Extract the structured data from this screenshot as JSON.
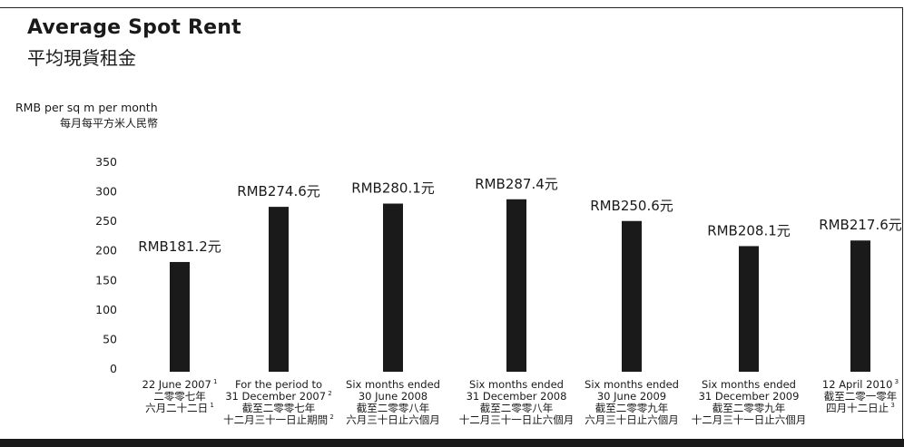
{
  "title": "Average Spot Rent",
  "title_zh": "平均現貨租金",
  "unit": "RMB per sq m per month",
  "unit_zh": "每月每平方米人民幣",
  "chart_data": {
    "type": "bar",
    "title": "Average Spot Rent",
    "ylabel": "RMB per sq m per month",
    "ylim": [
      0,
      350
    ],
    "yticks": [
      0,
      50,
      100,
      150,
      200,
      250,
      300,
      350
    ],
    "grid": false,
    "bar_color": "#1a1a1a",
    "categories": [
      "22 June 2007",
      "For the period to 31 December 2007",
      "Six months ended 30 June 2008",
      "Six months ended 31 December 2008",
      "Six months ended 30 June 2009",
      "Six months ended 31 December 2009",
      "12 April 2010"
    ],
    "values": [
      181.2,
      274.6,
      280.1,
      287.4,
      250.6,
      208.1,
      217.6
    ],
    "data_labels": [
      "RMB181.2元",
      "RMB274.6元",
      "RMB280.1元",
      "RMB287.4元",
      "RMB250.6元",
      "RMB208.1元",
      "RMB217.6元"
    ],
    "category_labels": [
      {
        "lines": [
          {
            "t": "22 June 2007",
            "sup": "1"
          },
          {
            "t": "二零零七年"
          },
          {
            "t": "六月二十二日",
            "sup": "1"
          }
        ]
      },
      {
        "lines": [
          {
            "t": "For the period to"
          },
          {
            "t": "31 December 2007",
            "sup": "2"
          },
          {
            "t": "截至二零零七年"
          },
          {
            "t": "十二月三十一日止期間",
            "sup": "2"
          }
        ]
      },
      {
        "lines": [
          {
            "t": "Six months ended"
          },
          {
            "t": "30 June 2008"
          },
          {
            "t": "截至二零零八年"
          },
          {
            "t": "六月三十日止六個月"
          }
        ]
      },
      {
        "lines": [
          {
            "t": "Six months ended"
          },
          {
            "t": "31 December 2008"
          },
          {
            "t": "截至二零零八年"
          },
          {
            "t": "十二月三十一日止六個月"
          }
        ]
      },
      {
        "lines": [
          {
            "t": "Six months ended"
          },
          {
            "t": "30 June 2009"
          },
          {
            "t": "截至二零零九年"
          },
          {
            "t": "六月三十日止六個月"
          }
        ]
      },
      {
        "lines": [
          {
            "t": "Six months ended"
          },
          {
            "t": "31 December 2009"
          },
          {
            "t": "截至二零零九年"
          },
          {
            "t": "十二月三十一日止六個月"
          }
        ]
      },
      {
        "lines": [
          {
            "t": "12 April 2010",
            "sup": "3"
          },
          {
            "t": "截至二零一零年"
          },
          {
            "t": "四月十二日止",
            "sup": "3"
          }
        ]
      }
    ]
  }
}
